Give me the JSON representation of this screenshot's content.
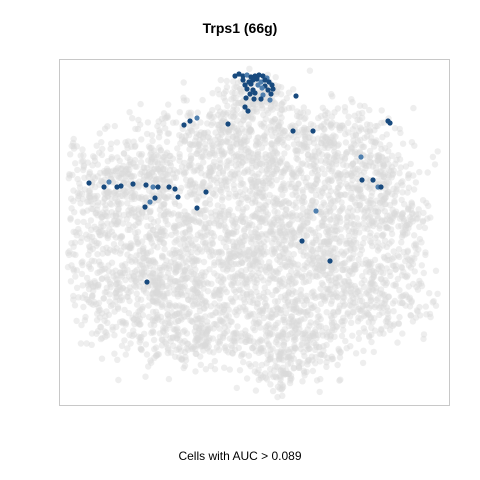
{
  "chart_data": {
    "type": "scatter",
    "title": "Trps1 (66g)",
    "xlabel": "",
    "ylabel": "",
    "caption": "Cells with AUC > 0.089",
    "grid": false,
    "axis_ticks": false,
    "colors": {
      "background_cells": "#d9d9d9",
      "highlight_cells": "#184a7e",
      "highlight_light": "#4f7fae",
      "frame": "#c8c8c8"
    },
    "series": [
      {
        "name": "",
        "role": "highlighted",
        "x": [
          235,
          239,
          243,
          247,
          251,
          255,
          259,
          263,
          267,
          243,
          249,
          253,
          257,
          261,
          265,
          269,
          245,
          251,
          258,
          265,
          272,
          247,
          253,
          262,
          268,
          273,
          250,
          255,
          263,
          271,
          246,
          254,
          261,
          270,
          296,
          245,
          184,
          190,
          197,
          228,
          248,
          293,
          313,
          361,
          390,
          388,
          89,
          104,
          109,
          117,
          121,
          133,
          146,
          153,
          158,
          169,
          175,
          145,
          150,
          155,
          178,
          197,
          206,
          316,
          302,
          330,
          362,
          373,
          378,
          381,
          147
        ],
        "y": [
          76,
          74,
          76,
          75,
          77,
          76,
          75,
          76,
          78,
          80,
          82,
          80,
          79,
          82,
          80,
          82,
          85,
          84,
          85,
          86,
          85,
          89,
          90,
          88,
          90,
          89,
          94,
          93,
          95,
          94,
          98,
          99,
          99,
          100,
          96,
          107,
          125,
          121,
          118,
          124,
          111,
          131,
          131,
          157,
          123,
          121,
          183,
          187,
          182,
          187,
          186,
          184,
          185,
          187,
          187,
          187,
          189,
          207,
          202,
          198,
          197,
          208,
          192,
          211,
          241,
          261,
          180,
          180,
          187,
          187,
          282
        ],
        "note": "positions read in the figure's own embedding units (no printed axis)"
      }
    ]
  }
}
